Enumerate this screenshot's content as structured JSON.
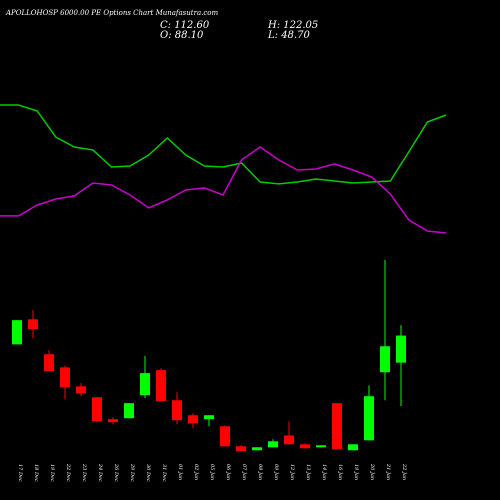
{
  "chart_data": {
    "type": "candlestick",
    "title": "APOLLOHOSP 6000.00 PE Options Chart Munafasutra.com",
    "summary": [
      {
        "label": "C: 112.60",
        "value": 112.6
      },
      {
        "label": "O: 88.10",
        "value": 88.1
      },
      {
        "label": "H: 122.05",
        "value": 122.05
      },
      {
        "label": "L: 48.70",
        "value": 48.7
      }
    ],
    "categories": [
      "17 Dec",
      "18 Dec",
      "19 Dec",
      "22 Dec",
      "23 Dec",
      "24 Dec",
      "26 Dec",
      "29 Dec",
      "30 Dec",
      "31 Dec",
      "01 Jan",
      "02 Jan",
      "05 Jan",
      "06 Jan",
      "07 Jan",
      "08 Jan",
      "09 Jan",
      "12 Jan",
      "13 Jan",
      "14 Jan",
      "16 Jan",
      "19 Jan",
      "20 Jan",
      "21 Jan",
      "22 Jan"
    ],
    "open": [
      104.6,
      127.3,
      95.7,
      83.8,
      66.6,
      56.8,
      36.9,
      37.8,
      58.6,
      81.3,
      54.1,
      40.5,
      36.9,
      30.5,
      12.4,
      8.8,
      11.5,
      22.2,
      14.2,
      11.5,
      51.4,
      8.8,
      17.8,
      79.4,
      88.1
    ],
    "high": [
      126.5,
      135.6,
      99.4,
      85.6,
      69.5,
      56.8,
      38.8,
      51.4,
      94.0,
      83.1,
      61.3,
      42.3,
      40.5,
      31.4,
      13.3,
      11.5,
      18.8,
      34.9,
      15.1,
      13.3,
      51.4,
      14.2,
      67.5,
      181.0,
      122.05
    ],
    "low": [
      104.6,
      110.2,
      80.3,
      54.9,
      57.7,
      34.2,
      32.4,
      37.8,
      55.9,
      53.2,
      32.4,
      28.7,
      30.5,
      12.4,
      7.9,
      8.8,
      11.5,
      14.2,
      10.6,
      11.5,
      9.7,
      8.8,
      17.8,
      54.1,
      48.7
    ],
    "close": [
      126.5,
      118.4,
      80.3,
      65.7,
      60.3,
      35.1,
      34.2,
      51.4,
      78.6,
      53.2,
      36.0,
      33.2,
      40.5,
      12.4,
      7.9,
      11.5,
      16.9,
      14.2,
      10.6,
      13.3,
      9.7,
      14.2,
      57.7,
      102.9,
      112.6
    ],
    "up_color": "#00ff00",
    "down_color": "#ff0000",
    "ylim": [
      0,
      190
    ],
    "lines": [
      {
        "color": "#00cc00",
        "values": [
          90.6,
          90.6,
          86.9,
          70.6,
          64.4,
          62.5,
          51.9,
          52.5,
          59.4,
          70.0,
          59.4,
          52.5,
          51.9,
          54.4,
          42.5,
          41.3,
          42.5,
          44.4,
          43.1,
          41.9,
          42.5,
          43.1,
          61.3,
          80.0,
          84.4
        ]
      },
      {
        "color": "#cc00cc",
        "values": [
          21.3,
          21.3,
          28.1,
          31.9,
          33.8,
          41.9,
          40.6,
          34.4,
          26.3,
          31.3,
          37.5,
          38.8,
          34.4,
          56.3,
          64.4,
          56.3,
          50.0,
          50.6,
          53.8,
          50.0,
          45.6,
          35.0,
          18.8,
          11.9,
          10.6
        ]
      }
    ],
    "lines_ylim": [
      0,
      100
    ]
  }
}
